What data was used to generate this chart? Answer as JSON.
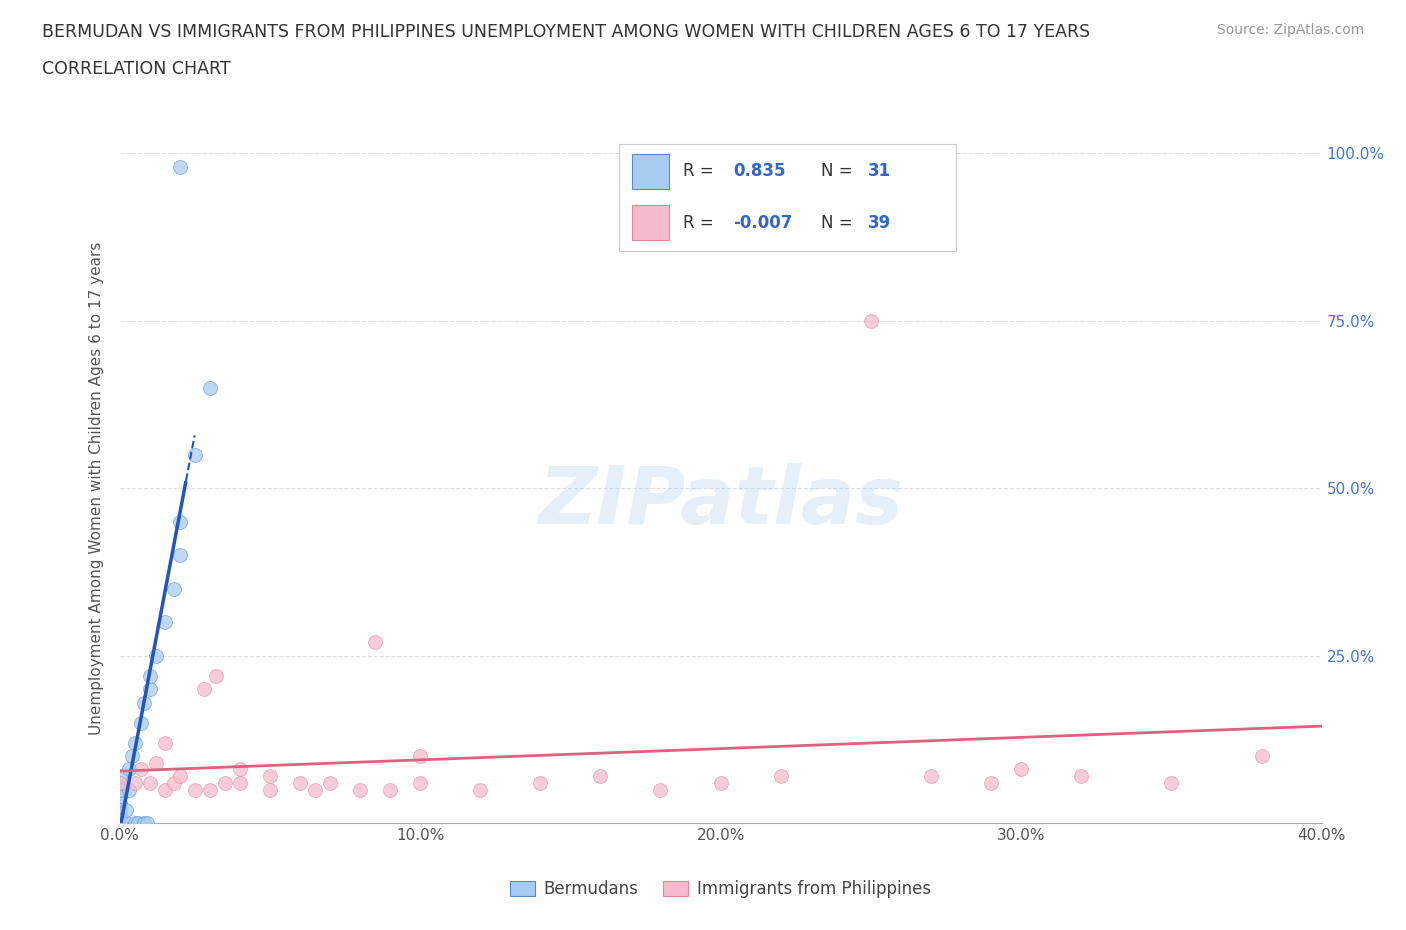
{
  "title_line1": "BERMUDAN VS IMMIGRANTS FROM PHILIPPINES UNEMPLOYMENT AMONG WOMEN WITH CHILDREN AGES 6 TO 17 YEARS",
  "title_line2": "CORRELATION CHART",
  "source_text": "Source: ZipAtlas.com",
  "ylabel": "Unemployment Among Women with Children Ages 6 to 17 years",
  "xlim": [
    0.0,
    0.4
  ],
  "ylim": [
    0.0,
    1.0
  ],
  "xticks": [
    0.0,
    0.1,
    0.2,
    0.3,
    0.4
  ],
  "yticks": [
    0.0,
    0.25,
    0.5,
    0.75,
    1.0
  ],
  "xticklabels": [
    "0.0%",
    "10.0%",
    "20.0%",
    "30.0%",
    "40.0%"
  ],
  "yticklabels_right": [
    "",
    "25.0%",
    "50.0%",
    "75.0%",
    "100.0%"
  ],
  "watermark_text": "ZIPatlas",
  "legend_R1": "0.835",
  "legend_N1": "31",
  "legend_R2": "-0.007",
  "legend_N2": "39",
  "blue_scatter_color": "#A8CCF0",
  "blue_edge_color": "#5588CC",
  "blue_line_color": "#2255BB",
  "pink_scatter_color": "#F5BBCC",
  "pink_edge_color": "#E08898",
  "pink_line_color": "#E06080",
  "grid_color": "#DDDDDD",
  "bg_color": "#FFFFFF",
  "bermudans_x": [
    0.0,
    0.0,
    0.0,
    0.0,
    0.0,
    0.0,
    0.0,
    0.0,
    0.0,
    0.0,
    0.002,
    0.002,
    0.003,
    0.003,
    0.004,
    0.005,
    0.005,
    0.006,
    0.007,
    0.008,
    0.008,
    0.009,
    0.01,
    0.01,
    0.012,
    0.015,
    0.018,
    0.02,
    0.02,
    0.025,
    0.03
  ],
  "bermudans_y": [
    0.0,
    0.0,
    0.01,
    0.01,
    0.02,
    0.03,
    0.04,
    0.05,
    0.06,
    0.07,
    0.0,
    0.02,
    0.05,
    0.08,
    0.1,
    0.0,
    0.12,
    0.0,
    0.15,
    0.0,
    0.18,
    0.0,
    0.2,
    0.22,
    0.25,
    0.3,
    0.35,
    0.4,
    0.45,
    0.55,
    0.65
  ],
  "bermudans_outlier_x": [
    0.02
  ],
  "bermudans_outlier_y": [
    0.98
  ],
  "philippines_x": [
    0.0,
    0.005,
    0.007,
    0.01,
    0.012,
    0.015,
    0.015,
    0.018,
    0.02,
    0.025,
    0.028,
    0.03,
    0.032,
    0.035,
    0.04,
    0.04,
    0.05,
    0.05,
    0.06,
    0.065,
    0.07,
    0.08,
    0.085,
    0.09,
    0.1,
    0.1,
    0.12,
    0.14,
    0.16,
    0.18,
    0.2,
    0.22,
    0.25,
    0.27,
    0.29,
    0.3,
    0.32,
    0.35,
    0.38
  ],
  "philippines_y": [
    0.06,
    0.06,
    0.08,
    0.06,
    0.09,
    0.05,
    0.12,
    0.06,
    0.07,
    0.05,
    0.2,
    0.05,
    0.22,
    0.06,
    0.08,
    0.06,
    0.05,
    0.07,
    0.06,
    0.05,
    0.06,
    0.05,
    0.27,
    0.05,
    0.06,
    0.1,
    0.05,
    0.06,
    0.07,
    0.05,
    0.06,
    0.07,
    0.75,
    0.07,
    0.06,
    0.08,
    0.07,
    0.06,
    0.1
  ]
}
